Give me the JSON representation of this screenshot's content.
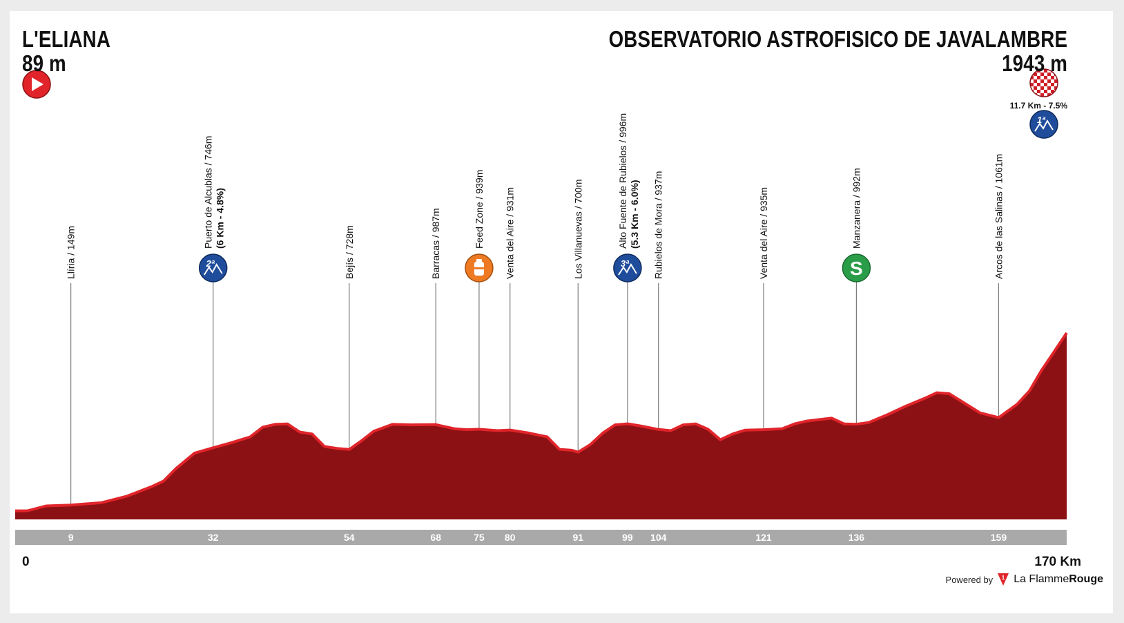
{
  "header": {
    "start_name": "L'ELIANA",
    "start_altitude": "89 m",
    "finish_name": "OBSERVATORIO ASTROFISICO DE JAVALAMBRE",
    "finish_altitude": "1943 m",
    "final_climb": "11.7 Km - 7.5%",
    "start_icon": "play-icon",
    "finish_icon": "checkered-flag-icon",
    "final_climb_badge": "1ª"
  },
  "footer": {
    "km_start": "0",
    "km_total": "170 Km",
    "powered_by": "Powered by",
    "brand_prefix": "La Flamme",
    "brand_suffix": "Rouge"
  },
  "colors": {
    "profile_fill": "#8b1114",
    "profile_edge": "#e0242a",
    "km_band": "#a9a9a9",
    "kom_badge": "#1f4d9c",
    "sprint_badge": "#2a9d48",
    "feed_badge": "#ee7a24",
    "start_badge": "#e0242a"
  },
  "chart_data": {
    "type": "area",
    "xlim": [
      0,
      170
    ],
    "ylim": [
      0,
      2150
    ],
    "x_unit": "Km",
    "profile": [
      [
        0,
        89
      ],
      [
        2,
        90
      ],
      [
        5,
        140
      ],
      [
        9,
        149
      ],
      [
        14,
        175
      ],
      [
        18,
        240
      ],
      [
        22,
        340
      ],
      [
        24,
        400
      ],
      [
        26,
        530
      ],
      [
        29,
        690
      ],
      [
        32,
        746
      ],
      [
        35,
        800
      ],
      [
        38,
        860
      ],
      [
        40,
        960
      ],
      [
        42,
        990
      ],
      [
        44,
        995
      ],
      [
        46,
        910
      ],
      [
        48,
        890
      ],
      [
        50,
        760
      ],
      [
        52,
        740
      ],
      [
        54,
        728
      ],
      [
        56,
        820
      ],
      [
        58,
        920
      ],
      [
        61,
        990
      ],
      [
        64,
        985
      ],
      [
        68,
        987
      ],
      [
        71,
        945
      ],
      [
        73,
        935
      ],
      [
        75,
        939
      ],
      [
        78,
        925
      ],
      [
        80,
        931
      ],
      [
        83,
        900
      ],
      [
        86,
        860
      ],
      [
        88,
        730
      ],
      [
        90,
        720
      ],
      [
        91,
        700
      ],
      [
        93,
        780
      ],
      [
        95,
        900
      ],
      [
        97,
        985
      ],
      [
        99,
        996
      ],
      [
        101,
        975
      ],
      [
        104,
        937
      ],
      [
        106,
        925
      ],
      [
        108,
        985
      ],
      [
        110,
        995
      ],
      [
        112,
        940
      ],
      [
        114,
        830
      ],
      [
        116,
        890
      ],
      [
        118,
        930
      ],
      [
        121,
        935
      ],
      [
        124,
        945
      ],
      [
        126,
        995
      ],
      [
        128,
        1025
      ],
      [
        130,
        1040
      ],
      [
        132,
        1055
      ],
      [
        134,
        995
      ],
      [
        136,
        992
      ],
      [
        138,
        1010
      ],
      [
        141,
        1090
      ],
      [
        144,
        1180
      ],
      [
        147,
        1260
      ],
      [
        149,
        1320
      ],
      [
        151,
        1310
      ],
      [
        153,
        1230
      ],
      [
        156,
        1110
      ],
      [
        159,
        1061
      ],
      [
        162,
        1200
      ],
      [
        164,
        1340
      ],
      [
        166,
        1560
      ],
      [
        168,
        1750
      ],
      [
        170,
        1943
      ]
    ],
    "markers": [
      {
        "km": "9",
        "x": 9,
        "label": "Llíria / 149m"
      },
      {
        "km": "32",
        "x": 32,
        "label": "Puerto de Alcublas / 746m",
        "sub": "(6 Km - 4.8%)",
        "badge": "kom",
        "badge_text": "2ª"
      },
      {
        "km": "54",
        "x": 54,
        "label": "Bejís / 728m"
      },
      {
        "km": "68",
        "x": 68,
        "label": "Barracas / 987m"
      },
      {
        "km": "75",
        "x": 75,
        "label": "Feed Zone / 939m",
        "badge": "feed"
      },
      {
        "km": "80",
        "x": 80,
        "label": "Venta del Aire / 931m"
      },
      {
        "km": "91",
        "x": 91,
        "label": "Los Villanuevas / 700m"
      },
      {
        "km": "99",
        "x": 99,
        "label": "Alto Fuente de Rubielos / 996m",
        "sub": "(5.3 Km - 6.0%)",
        "badge": "kom",
        "badge_text": "3ª"
      },
      {
        "km": "104",
        "x": 104,
        "label": "Rubielos de Mora / 937m"
      },
      {
        "km": "121",
        "x": 121,
        "label": "Venta del Aire / 935m"
      },
      {
        "km": "136",
        "x": 136,
        "label": "Manzanera / 992m",
        "badge": "sprint",
        "badge_text": "S"
      },
      {
        "km": "159",
        "x": 159,
        "label": "Arcos de las Salinas / 1061m"
      }
    ]
  }
}
